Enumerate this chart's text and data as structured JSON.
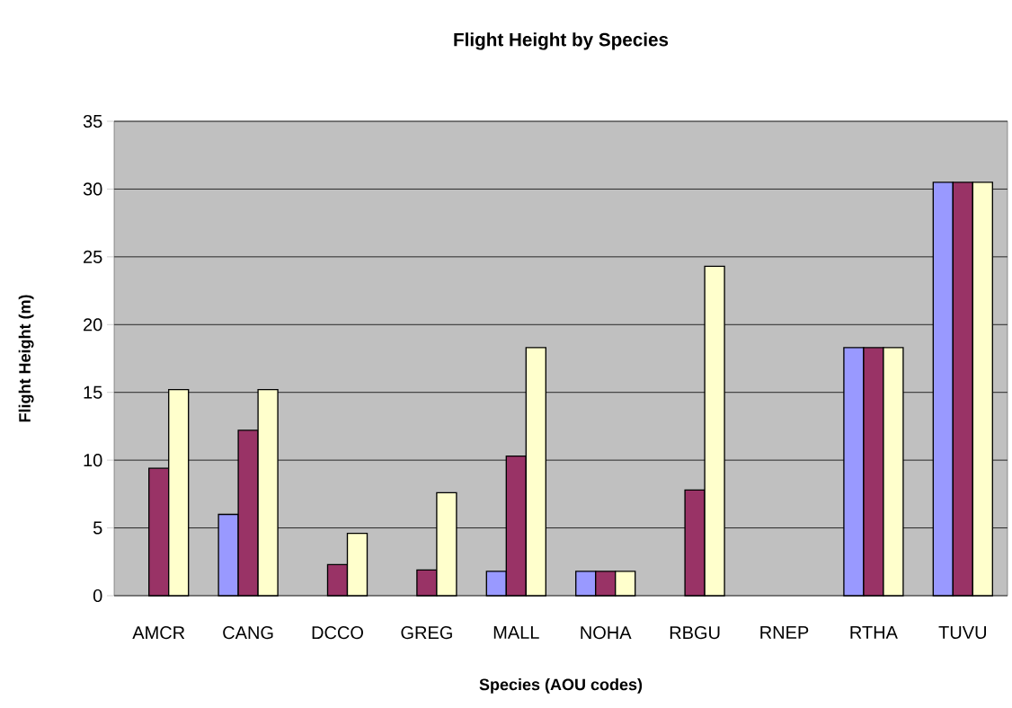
{
  "chart_data": {
    "type": "bar",
    "title": "Flight Height by Species",
    "xlabel": "Species (AOU codes)",
    "ylabel": "Flight Height (m)",
    "categories": [
      "AMCR",
      "CANG",
      "DCCO",
      "GREG",
      "MALL",
      "NOHA",
      "RBGU",
      "RNEP",
      "RTHA",
      "TUVU"
    ],
    "series": [
      {
        "color": "#9999ff",
        "values": [
          null,
          6.0,
          null,
          null,
          1.8,
          1.8,
          null,
          null,
          18.3,
          30.5
        ]
      },
      {
        "color": "#993366",
        "values": [
          9.4,
          12.2,
          2.3,
          1.9,
          10.3,
          1.8,
          7.8,
          null,
          18.3,
          30.5
        ]
      },
      {
        "color": "#ffffcc",
        "values": [
          15.2,
          15.2,
          4.6,
          7.6,
          18.3,
          1.8,
          24.3,
          null,
          18.3,
          30.5
        ]
      }
    ],
    "ylim": [
      0,
      35
    ],
    "yticks": [
      0,
      5,
      10,
      15,
      20,
      25,
      30,
      35
    ],
    "grid": "y"
  }
}
